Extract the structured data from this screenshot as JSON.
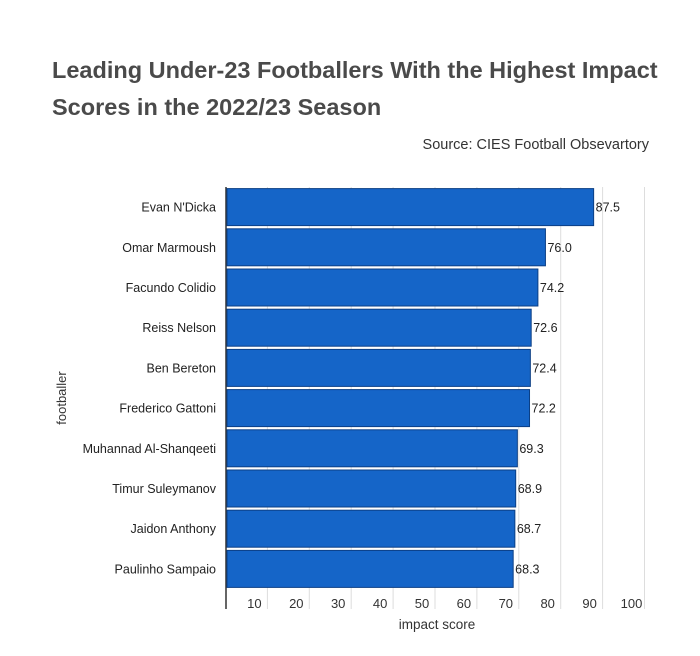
{
  "title": "Leading Under-23 Footballers With the Highest Impact Scores in the 2022/23 Season",
  "source": "Source: CIES Football Obsevartory",
  "colors": {
    "bar": "#1565c8",
    "bar_stroke": "#0b3f85",
    "grid": "#dddddd",
    "axis": "#333333",
    "text": "#222222"
  },
  "chart_data": {
    "type": "bar",
    "orientation": "horizontal",
    "categories": [
      "Evan N'Dicka",
      "Omar Marmoush",
      "Facundo Colidio",
      "Reiss Nelson",
      "Ben Bereton",
      "Frederico Gattoni",
      "Muhannad Al-Shanqeeti",
      "Timur Suleymanov",
      "Jaidon Anthony",
      "Paulinho Sampaio"
    ],
    "values": [
      87.5,
      76.0,
      74.2,
      72.6,
      72.4,
      72.2,
      69.3,
      68.9,
      68.7,
      68.3
    ],
    "value_labels": [
      "87.5",
      "76.0",
      "74.2",
      "72.6",
      "72.4",
      "72.2",
      "69.3",
      "68.9",
      "68.7",
      "68.3"
    ],
    "xlabel": "impact score",
    "ylabel": "footballer",
    "xlim": [
      0,
      100
    ],
    "xticks": [
      10,
      20,
      30,
      40,
      50,
      60,
      70,
      80,
      90,
      100
    ],
    "grid": true
  }
}
